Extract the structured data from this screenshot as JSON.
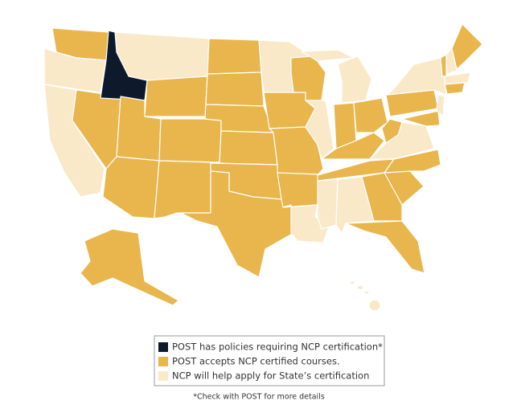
{
  "legend": {
    "items": [
      {
        "text": "POST has policies requiring NCP certification*",
        "color": "#0e1a2c"
      },
      {
        "text": "POST accepts NCP certified courses.",
        "color": "#e8b64c"
      },
      {
        "text": "NCP will help apply for State’s certification",
        "color": "#f9e9c9"
      }
    ]
  },
  "footnote": "*Check with POST for more details"
}
